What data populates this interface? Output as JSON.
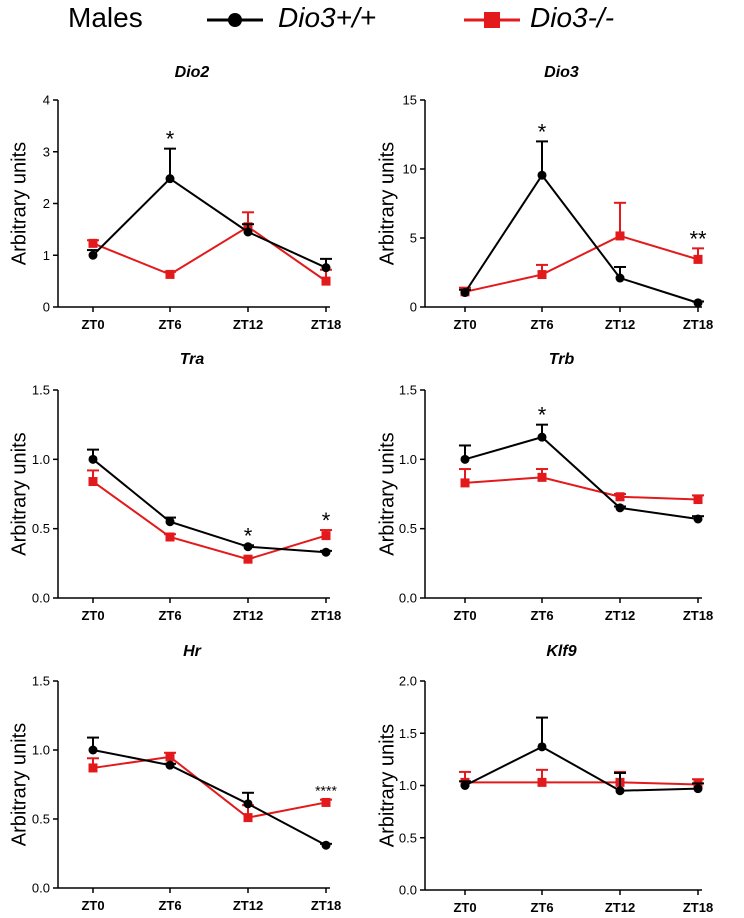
{
  "legend": {
    "title": "Males",
    "series1": "Dio3+/+",
    "series2": "Dio3-/-",
    "color1": "#000000",
    "color2": "#e31a1c"
  },
  "chart_data": [
    {
      "type": "line",
      "title": "Dio2",
      "ylabel": "Arbitrary units",
      "categories": [
        "ZT0",
        "ZT6",
        "ZT12",
        "ZT18"
      ],
      "ylim": [
        0,
        4
      ],
      "yticks": [
        "0",
        "1",
        "2",
        "3",
        "4"
      ],
      "series": [
        {
          "name": "Dio3+/+",
          "values": [
            1.0,
            2.48,
            1.45,
            0.76
          ],
          "errors": [
            0.1,
            0.58,
            0.15,
            0.17
          ]
        },
        {
          "name": "Dio3-/-",
          "values": [
            1.23,
            0.63,
            1.55,
            0.5
          ],
          "errors": [
            0.06,
            0.05,
            0.28,
            0.22
          ]
        }
      ],
      "annotations": [
        {
          "category": "ZT6",
          "text": "*"
        }
      ]
    },
    {
      "type": "line",
      "title": "Dio3",
      "ylabel": "Arbitrary units",
      "categories": [
        "ZT0",
        "ZT6",
        "ZT12",
        "ZT18"
      ],
      "ylim": [
        0,
        15
      ],
      "yticks": [
        "0",
        "5",
        "10",
        "15"
      ],
      "series": [
        {
          "name": "Dio3+/+",
          "values": [
            1.05,
            9.55,
            2.1,
            0.3
          ],
          "errors": [
            0.2,
            2.45,
            0.8,
            0.1
          ]
        },
        {
          "name": "Dio3-/-",
          "values": [
            1.1,
            2.35,
            5.15,
            3.45
          ],
          "errors": [
            0.3,
            0.7,
            2.4,
            0.8
          ]
        }
      ],
      "annotations": [
        {
          "category": "ZT6",
          "text": "*"
        },
        {
          "category": "ZT18",
          "text": "**"
        }
      ]
    },
    {
      "type": "line",
      "title": "Tra",
      "ylabel": "Arbitrary units",
      "categories": [
        "ZT0",
        "ZT6",
        "ZT12",
        "ZT18"
      ],
      "ylim": [
        0,
        1.5
      ],
      "yticks": [
        "0.0",
        "0.5",
        "1.0",
        "1.5"
      ],
      "series": [
        {
          "name": "Dio3+/+",
          "values": [
            1.0,
            0.55,
            0.37,
            0.33
          ],
          "errors": [
            0.07,
            0.03,
            0.01,
            0.01
          ]
        },
        {
          "name": "Dio3-/-",
          "values": [
            0.84,
            0.44,
            0.28,
            0.45
          ],
          "errors": [
            0.08,
            0.02,
            0.01,
            0.04
          ]
        }
      ],
      "annotations": [
        {
          "category": "ZT12",
          "text": "*"
        },
        {
          "category": "ZT18",
          "text": "*"
        }
      ]
    },
    {
      "type": "line",
      "title": "Trb",
      "ylabel": "Arbitrary units",
      "categories": [
        "ZT0",
        "ZT6",
        "ZT12",
        "ZT18"
      ],
      "ylim": [
        0,
        1.5
      ],
      "yticks": [
        "0.0",
        "0.5",
        "1.0",
        "1.5"
      ],
      "series": [
        {
          "name": "Dio3+/+",
          "values": [
            1.0,
            1.16,
            0.65,
            0.57
          ],
          "errors": [
            0.1,
            0.09,
            0.01,
            0.02
          ]
        },
        {
          "name": "Dio3-/-",
          "values": [
            0.83,
            0.87,
            0.73,
            0.71
          ],
          "errors": [
            0.1,
            0.06,
            0.02,
            0.03
          ]
        }
      ],
      "annotations": [
        {
          "category": "ZT6",
          "text": "*"
        }
      ]
    },
    {
      "type": "line",
      "title": "Hr",
      "ylabel": "Arbitrary units",
      "categories": [
        "ZT0",
        "ZT6",
        "ZT12",
        "ZT18"
      ],
      "ylim": [
        0,
        1.5
      ],
      "yticks": [
        "0.0",
        "0.5",
        "1.0",
        "1.5"
      ],
      "series": [
        {
          "name": "Dio3+/+",
          "values": [
            1.0,
            0.89,
            0.61,
            0.31
          ],
          "errors": [
            0.09,
            0.01,
            0.08,
            0.01
          ]
        },
        {
          "name": "Dio3-/-",
          "values": [
            0.87,
            0.95,
            0.51,
            0.62
          ],
          "errors": [
            0.07,
            0.03,
            0.09,
            0.02
          ]
        }
      ],
      "annotations": [
        {
          "category": "ZT18",
          "text": "****"
        }
      ]
    },
    {
      "type": "line",
      "title": "Klf9",
      "ylabel": "Arbitrary units",
      "categories": [
        "ZT0",
        "ZT6",
        "ZT12",
        "ZT18"
      ],
      "ylim": [
        0,
        2.0
      ],
      "yticks": [
        "0.0",
        "0.5",
        "1.0",
        "1.5",
        "2.0"
      ],
      "series": [
        {
          "name": "Dio3+/+",
          "values": [
            1.0,
            1.37,
            0.95,
            0.97
          ],
          "errors": [
            0.04,
            0.28,
            0.17,
            0.05
          ]
        },
        {
          "name": "Dio3-/-",
          "values": [
            1.03,
            1.03,
            1.03,
            1.01
          ],
          "errors": [
            0.1,
            0.12,
            0.1,
            0.05
          ]
        }
      ],
      "annotations": []
    }
  ]
}
